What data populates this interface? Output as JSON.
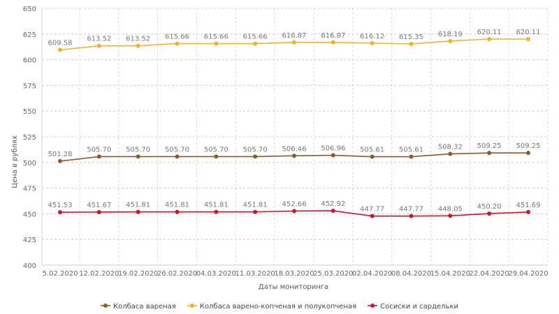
{
  "chart_data": {
    "type": "line",
    "title": "",
    "xlabel": "Даты мониторинга",
    "ylabel": "Цена в рублях",
    "ylim": [
      400,
      650
    ],
    "y_ticks": [
      400,
      425,
      450,
      475,
      500,
      525,
      550,
      575,
      600,
      625,
      650
    ],
    "grid": true,
    "legend_position": "bottom",
    "categories": [
      "5.02.2020",
      "12.02.2020",
      "19.02.2020",
      "26.02.2020",
      "04.03.2020",
      "11.03.2020",
      "18.03.2020",
      "25.03.2020",
      "02.04.2020",
      "08.04.2020",
      "15.04.2020",
      "22.04.2020",
      "29.04.2020"
    ],
    "series": [
      {
        "name": "Колбаса вареная",
        "color": "#8B5A2B",
        "values": [
          501.28,
          505.7,
          505.7,
          505.7,
          505.7,
          505.7,
          506.46,
          506.96,
          505.61,
          505.61,
          508.32,
          509.25,
          509.25
        ],
        "labels": [
          "501.28",
          "505.70",
          "505.70",
          "505.70",
          "505.70",
          "505.70",
          "506.46",
          "506.96",
          "505.61",
          "505.61",
          "508.32",
          "509.25",
          "509.25"
        ]
      },
      {
        "name": "Колбаса варено-копченая и полукопченая",
        "color": "#F2B227",
        "values": [
          609.58,
          613.52,
          613.52,
          615.66,
          615.66,
          615.66,
          616.87,
          616.87,
          616.12,
          615.35,
          618.19,
          620.11,
          620.11
        ],
        "labels": [
          "609.58",
          "613.52",
          "613.52",
          "615.66",
          "615.66",
          "615.66",
          "616.87",
          "616.87",
          "616.12",
          "615.35",
          "618.19",
          "620.11",
          "620.11"
        ]
      },
      {
        "name": "Сосиски и сардельки",
        "color": "#D0142C",
        "values": [
          451.53,
          451.67,
          451.81,
          451.81,
          451.81,
          451.81,
          452.66,
          452.92,
          447.77,
          447.77,
          448.05,
          450.2,
          451.69
        ],
        "labels": [
          "451.53",
          "451.67",
          "451.81",
          "451.81",
          "451.81",
          "451.81",
          "452.66",
          "452.92",
          "447.77",
          "447.77",
          "448.05",
          "450.20",
          "451.69"
        ]
      }
    ]
  }
}
